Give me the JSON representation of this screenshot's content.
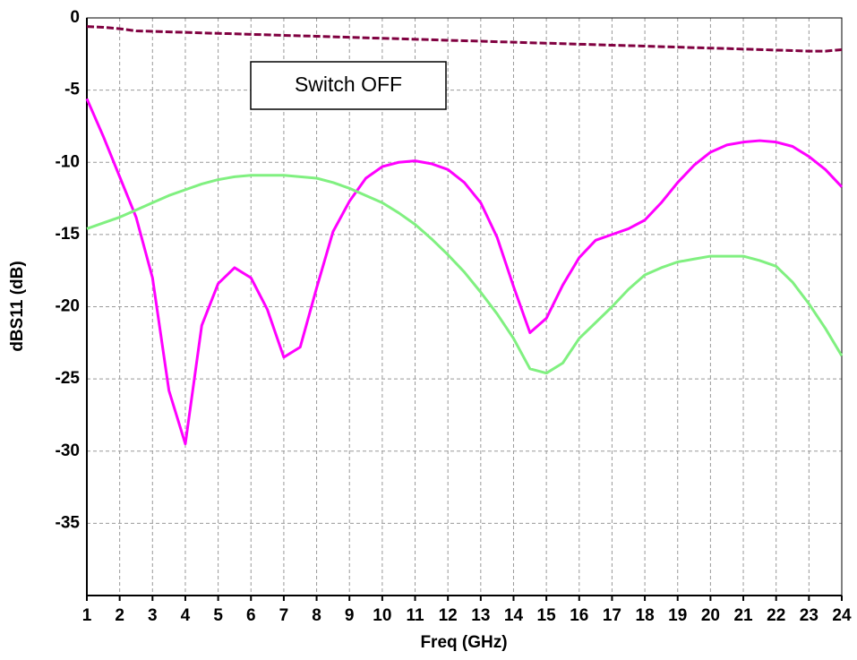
{
  "chart_data": {
    "type": "line",
    "x_label": "Freq (GHz)",
    "y_label": "dBS11 (dB)",
    "annotation": "Switch OFF",
    "x": [
      1,
      1.5,
      2,
      2.5,
      3,
      3.5,
      4,
      4.5,
      5,
      5.5,
      6,
      6.5,
      7,
      7.5,
      8,
      8.5,
      9,
      9.5,
      10,
      10.5,
      11,
      11.5,
      12,
      12.5,
      13,
      13.5,
      14,
      14.5,
      15,
      15.5,
      16,
      16.5,
      17,
      17.5,
      18,
      18.5,
      19,
      19.5,
      20,
      20.5,
      21,
      21.5,
      22,
      22.5,
      23,
      23.5,
      24
    ],
    "series": [
      {
        "color": "#800040",
        "style": "dashed",
        "values": [
          -0.6,
          -0.65,
          -0.75,
          -0.9,
          -0.93,
          -0.97,
          -1.0,
          -1.04,
          -1.07,
          -1.1,
          -1.14,
          -1.17,
          -1.21,
          -1.24,
          -1.27,
          -1.31,
          -1.34,
          -1.38,
          -1.41,
          -1.44,
          -1.48,
          -1.51,
          -1.55,
          -1.58,
          -1.61,
          -1.65,
          -1.68,
          -1.72,
          -1.75,
          -1.78,
          -1.82,
          -1.85,
          -1.89,
          -1.92,
          -1.95,
          -1.99,
          -2.02,
          -2.06,
          -2.09,
          -2.12,
          -2.16,
          -2.19,
          -2.23,
          -2.26,
          -2.3,
          -2.3,
          -2.2
        ]
      },
      {
        "color": "#ff00ff",
        "style": "solid",
        "values": [
          -5.6,
          -8.2,
          -11,
          -13.8,
          -18,
          -25.8,
          -29.5,
          -21.3,
          -18.4,
          -17.3,
          -18,
          -20.2,
          -23.5,
          -22.8,
          -18.7,
          -14.8,
          -12.7,
          -11.1,
          -10.3,
          -10,
          -9.9,
          -10.1,
          -10.5,
          -11.4,
          -12.8,
          -15.2,
          -18.6,
          -21.8,
          -20.8,
          -18.5,
          -16.6,
          -15.4,
          -15,
          -14.6,
          -14,
          -12.8,
          -11.4,
          -10.2,
          -9.3,
          -8.8,
          -8.6,
          -8.5,
          -8.6,
          -8.9,
          -9.6,
          -10.5,
          -11.7
        ]
      },
      {
        "color": "#80f080",
        "style": "solid",
        "values": [
          -14.6,
          -14.2,
          -13.8,
          -13.3,
          -12.8,
          -12.3,
          -11.9,
          -11.5,
          -11.2,
          -11,
          -10.9,
          -10.9,
          -10.9,
          -11,
          -11.1,
          -11.4,
          -11.8,
          -12.3,
          -12.8,
          -13.5,
          -14.3,
          -15.3,
          -16.4,
          -17.6,
          -19,
          -20.5,
          -22.2,
          -24.3,
          -24.6,
          -23.9,
          -22.2,
          -21.1,
          -20,
          -18.8,
          -17.8,
          -17.3,
          -16.9,
          -16.7,
          -16.5,
          -16.5,
          -16.5,
          -16.8,
          -17.2,
          -18.3,
          -19.8,
          -21.5,
          -23.4
        ]
      }
    ],
    "xlim": [
      1,
      24
    ],
    "xticks": [
      1,
      2,
      3,
      4,
      5,
      6,
      7,
      8,
      9,
      10,
      11,
      12,
      13,
      14,
      15,
      16,
      17,
      18,
      19,
      20,
      21,
      22,
      23,
      24
    ],
    "ylim": [
      -40,
      0
    ],
    "yticks": [
      0,
      -5,
      -10,
      -15,
      -20,
      -25,
      -30,
      -35
    ],
    "grid": true
  }
}
